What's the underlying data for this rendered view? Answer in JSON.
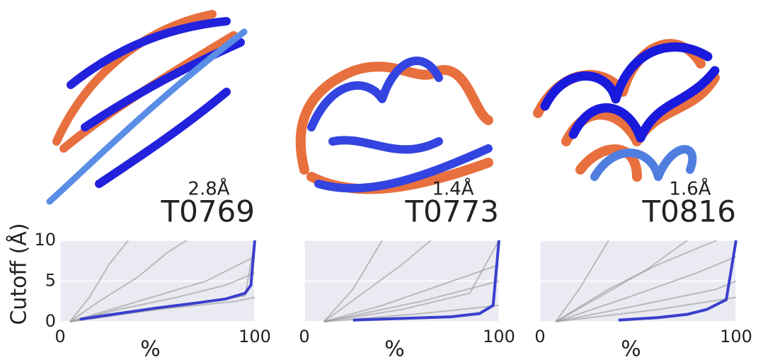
{
  "chart_data": [
    {
      "type": "line",
      "title": "T0769",
      "annotation": "2.8Å",
      "y_label": "Cutoff (Å)",
      "x_label": "%",
      "xlim": [
        0,
        100
      ],
      "ylim": [
        0,
        10
      ],
      "xticks": [
        0,
        100
      ],
      "yticks": [
        0,
        5,
        10
      ],
      "grid": true,
      "series": [
        {
          "color": "#999999",
          "x": [
            5,
            30,
            60,
            85,
            100
          ],
          "values": [
            0,
            1.5,
            3,
            4.5,
            6
          ]
        },
        {
          "color": "#999999",
          "x": [
            5,
            20,
            40,
            55,
            65
          ],
          "values": [
            0,
            2.5,
            5.5,
            8.5,
            10
          ]
        },
        {
          "color": "#999999",
          "x": [
            5,
            35,
            70,
            95,
            100
          ],
          "values": [
            0,
            1.2,
            2.2,
            3.2,
            10
          ]
        },
        {
          "color": "#999999",
          "x": [
            5,
            15,
            25,
            35
          ],
          "values": [
            0,
            3,
            7,
            10
          ]
        },
        {
          "color": "#999999",
          "x": [
            5,
            40,
            75,
            100
          ],
          "values": [
            0,
            2.5,
            5,
            8
          ]
        },
        {
          "color": "#999999",
          "x": [
            5,
            50,
            90,
            100
          ],
          "values": [
            0,
            1.5,
            2.5,
            3
          ]
        },
        {
          "color": "#3a3fcc",
          "x": [
            10,
            30,
            50,
            70,
            85,
            95,
            98,
            100
          ],
          "values": [
            0.3,
            1.0,
            1.7,
            2.3,
            2.8,
            3.5,
            4.5,
            10
          ]
        }
      ]
    },
    {
      "type": "line",
      "title": "T0773",
      "annotation": "1.4Å",
      "x_label": "%",
      "xlim": [
        0,
        100
      ],
      "ylim": [
        0,
        10
      ],
      "xticks": [
        0,
        100
      ],
      "yticks": [
        0,
        5,
        10
      ],
      "grid": true,
      "series": [
        {
          "color": "#999999",
          "x": [
            10,
            40,
            70,
            100
          ],
          "values": [
            0,
            2,
            4.5,
            7
          ]
        },
        {
          "color": "#999999",
          "x": [
            10,
            30,
            50,
            65
          ],
          "values": [
            0,
            3.5,
            7,
            10
          ]
        },
        {
          "color": "#999999",
          "x": [
            10,
            50,
            85,
            100
          ],
          "values": [
            0,
            1.5,
            3.5,
            10
          ]
        },
        {
          "color": "#999999",
          "x": [
            10,
            25,
            40
          ],
          "values": [
            0,
            4,
            10
          ]
        },
        {
          "color": "#999999",
          "x": [
            10,
            60,
            100
          ],
          "values": [
            0,
            2.5,
            5
          ]
        },
        {
          "color": "#999999",
          "x": [
            10,
            60,
            100
          ],
          "values": [
            0,
            1,
            2
          ]
        },
        {
          "color": "#3a3fcc",
          "x": [
            25,
            50,
            75,
            90,
            97,
            100
          ],
          "values": [
            0.2,
            0.4,
            0.6,
            1.0,
            2.0,
            10
          ]
        }
      ]
    },
    {
      "type": "line",
      "title": "T0816",
      "annotation": "1.6Å",
      "x_label": "%",
      "xlim": [
        0,
        100
      ],
      "ylim": [
        0,
        10
      ],
      "xticks": [
        0,
        100
      ],
      "yticks": [
        0,
        5,
        10
      ],
      "grid": true,
      "series": [
        {
          "color": "#999999",
          "x": [
            8,
            30,
            55,
            75
          ],
          "values": [
            0,
            3,
            6.5,
            10
          ]
        },
        {
          "color": "#999999",
          "x": [
            8,
            20,
            35
          ],
          "values": [
            0,
            4,
            10
          ]
        },
        {
          "color": "#999999",
          "x": [
            8,
            45,
            80,
            100
          ],
          "values": [
            0,
            3,
            6,
            8
          ]
        },
        {
          "color": "#999999",
          "x": [
            8,
            50,
            90,
            100
          ],
          "values": [
            0,
            2,
            4,
            5
          ]
        },
        {
          "color": "#999999",
          "x": [
            8,
            35,
            60,
            90
          ],
          "values": [
            0,
            4,
            7,
            10
          ]
        },
        {
          "color": "#999999",
          "x": [
            8,
            60,
            100
          ],
          "values": [
            0,
            1.5,
            3
          ]
        },
        {
          "color": "#3a3fcc",
          "x": [
            40,
            60,
            75,
            85,
            95,
            100
          ],
          "values": [
            0.2,
            0.5,
            0.9,
            1.5,
            2.7,
            10
          ]
        }
      ]
    }
  ]
}
